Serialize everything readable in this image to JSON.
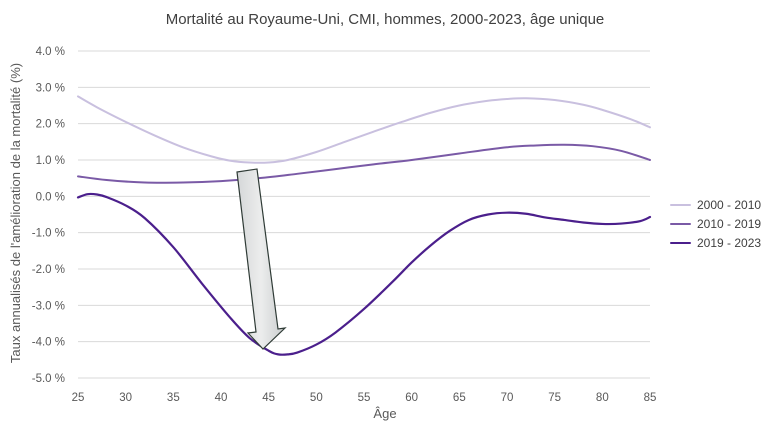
{
  "chart_data": {
    "type": "line",
    "title": "Mortalité au Royaume-Uni, CMI, hommes, 2000-2023, âge unique",
    "xlabel": "Âge",
    "ylabel": "Taux annualisés de l'amélioration de la mortalité (%)",
    "xlim": [
      25,
      85
    ],
    "ylim": [
      -5.0,
      4.0
    ],
    "x_ticks": [
      25,
      30,
      35,
      40,
      45,
      50,
      55,
      60,
      65,
      70,
      75,
      80,
      85
    ],
    "x_tick_labels": [
      "25",
      "30",
      "35",
      "40",
      "45",
      "50",
      "55",
      "60",
      "65",
      "70",
      "75",
      "80",
      "85"
    ],
    "y_ticks": [
      4.0,
      3.0,
      2.0,
      1.0,
      0.0,
      -1.0,
      -2.0,
      -3.0,
      -4.0,
      -5.0
    ],
    "y_tick_labels": [
      "4.0 %",
      "3.0 %",
      "2.0 %",
      "1.0 %",
      "0.0 %",
      "-1.0 %",
      "-2.0 %",
      "-3.0 %",
      "-4.0 %",
      "-5.0 %"
    ],
    "grid": "horizontal",
    "legend_position": "right",
    "annotation": "down-arrow",
    "series": [
      {
        "name": "2000 - 2010",
        "color": "#c9c0df",
        "x": [
          25,
          27,
          30,
          33,
          36,
          39,
          41,
          43,
          45,
          47,
          50,
          53,
          56,
          59,
          62,
          65,
          68,
          70,
          72,
          75,
          78,
          80,
          83,
          85
        ],
        "y": [
          2.75,
          2.45,
          2.05,
          1.68,
          1.35,
          1.1,
          0.98,
          0.93,
          0.93,
          1.0,
          1.22,
          1.5,
          1.78,
          2.05,
          2.3,
          2.5,
          2.63,
          2.68,
          2.7,
          2.65,
          2.52,
          2.38,
          2.12,
          1.9
        ]
      },
      {
        "name": "2010 - 2019",
        "color": "#7a5aa6",
        "x": [
          25,
          28,
          32,
          36,
          40,
          44,
          48,
          52,
          56,
          60,
          65,
          70,
          73,
          76,
          79,
          82,
          85
        ],
        "y": [
          0.55,
          0.45,
          0.38,
          0.38,
          0.42,
          0.5,
          0.62,
          0.75,
          0.88,
          1.0,
          1.18,
          1.35,
          1.4,
          1.42,
          1.38,
          1.25,
          1.0
        ]
      },
      {
        "name": "2019 - 2023",
        "color": "#4b1f8c",
        "x": [
          25,
          26,
          27,
          28,
          30,
          32,
          35,
          38,
          41,
          43,
          45,
          46,
          47,
          48,
          50,
          52,
          55,
          58,
          60,
          62,
          64,
          66,
          68,
          70,
          72,
          74,
          76,
          78,
          80,
          82,
          84,
          85
        ],
        "y": [
          -0.03,
          0.06,
          0.05,
          -0.02,
          -0.25,
          -0.6,
          -1.4,
          -2.4,
          -3.35,
          -3.9,
          -4.25,
          -4.35,
          -4.35,
          -4.3,
          -4.08,
          -3.75,
          -3.1,
          -2.35,
          -1.82,
          -1.35,
          -0.95,
          -0.65,
          -0.5,
          -0.45,
          -0.48,
          -0.58,
          -0.65,
          -0.72,
          -0.76,
          -0.75,
          -0.68,
          -0.57
        ]
      }
    ]
  }
}
